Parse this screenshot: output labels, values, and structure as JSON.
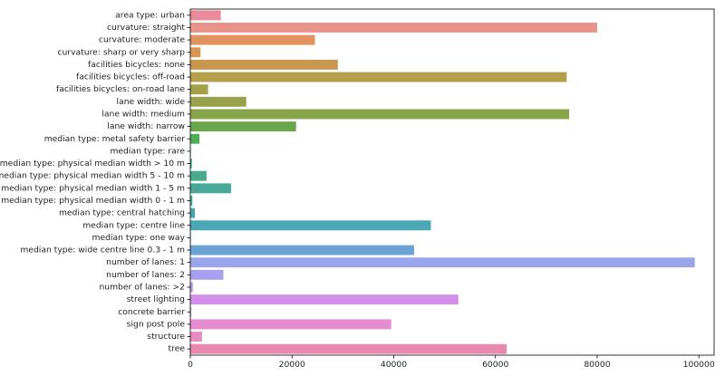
{
  "chart_data": {
    "type": "bar",
    "orientation": "horizontal",
    "title": "",
    "xlabel": "",
    "ylabel": "",
    "xlim": [
      0,
      103000
    ],
    "x_ticks": [
      0,
      20000,
      40000,
      60000,
      80000,
      100000
    ],
    "x_tick_labels": [
      "0",
      "20000",
      "40000",
      "60000",
      "80000",
      "100000"
    ],
    "grid": false,
    "legend": "none",
    "categories": [
      "area type: urban",
      "curvature: straight",
      "curvature: moderate",
      "curvature: sharp or very sharp",
      "facilities bicycles: none",
      "facilities bicycles: off-road",
      "facilities bicycles: on-road lane",
      "lane width: wide",
      "lane width: medium",
      "lane width: narrow",
      "median type: metal safety barrier",
      "median type: rare",
      "median type: physical median width > 10 m",
      "median type: physical median width 5 - 10 m",
      "median type: physical median width 1 - 5 m",
      "median type: physical median width 0 - 1 m",
      "median type: central hatching",
      "median type: centre line",
      "median type: one way",
      "median type: wide centre line 0.3 - 1 m",
      "number of lanes: 1",
      "number of lanes: 2",
      "number of lanes: >2",
      "street lighting",
      "concrete barrier",
      "sign post pole",
      "structure",
      "tree"
    ],
    "values": [
      6000,
      80000,
      24500,
      2000,
      29000,
      74000,
      3500,
      11000,
      74500,
      20800,
      1800,
      100,
      300,
      3200,
      8000,
      400,
      900,
      47300,
      100,
      44000,
      99200,
      6500,
      500,
      52700,
      200,
      39500,
      2300,
      62200
    ],
    "colors": [
      "#ea899a",
      "#e9948a",
      "#e2935d",
      "#d8964f",
      "#c6974d",
      "#b59f4a",
      "#a4a04a",
      "#97a24a",
      "#86a549",
      "#6aa74a",
      "#4fad5a",
      "#4bac72",
      "#4aab81",
      "#49aa8d",
      "#48a998",
      "#47a9a3",
      "#48a9ac",
      "#4aa7b6",
      "#55a6c3",
      "#6aa4d4",
      "#9aa6ec",
      "#a99fef",
      "#bb99ec",
      "#d28fe8",
      "#e08ae0",
      "#e58bcf",
      "#e88bc1",
      "#e889ad"
    ]
  }
}
